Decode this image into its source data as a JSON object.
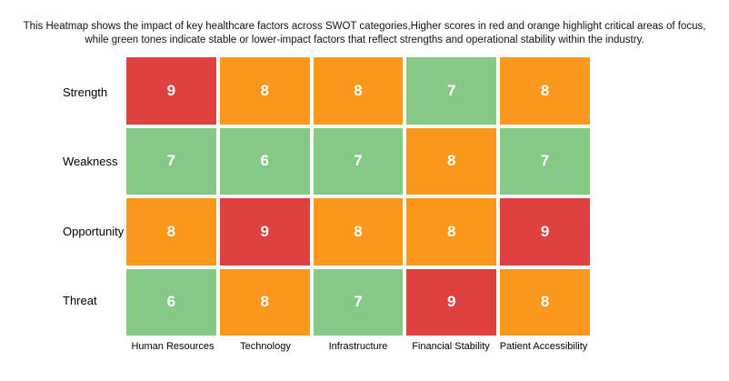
{
  "title": {
    "lines": [
      "This Heatmap shows the impact of key healthcare factors across SWOT categories,Higher scores in red and orange highlight critical areas of focus,",
      "while green tones indicate stable or lower-impact factors that reflect strengths and operational stability within the industry."
    ]
  },
  "chart_data": {
    "type": "heatmap",
    "rows": [
      "Strength",
      "Weakness",
      "Opportunity",
      "Threat"
    ],
    "columns": [
      "Human Resources",
      "Technology",
      "Infrastructure",
      "Financial Stability",
      "Patient Accessibility"
    ],
    "values": [
      [
        9,
        8,
        8,
        7,
        8
      ],
      [
        7,
        6,
        7,
        8,
        7
      ],
      [
        8,
        9,
        8,
        8,
        9
      ],
      [
        6,
        8,
        7,
        9,
        8
      ]
    ],
    "value_range": [
      6,
      9
    ],
    "legend": "none",
    "grid_gap_color": "#ffffff",
    "colors": {
      "green": "#85c985",
      "orange": "#f9981d",
      "red": "#df4141",
      "cell_text": "#ffffff"
    },
    "color_rule": {
      "green_max": 7,
      "orange_value": 8,
      "red_min": 9
    }
  }
}
